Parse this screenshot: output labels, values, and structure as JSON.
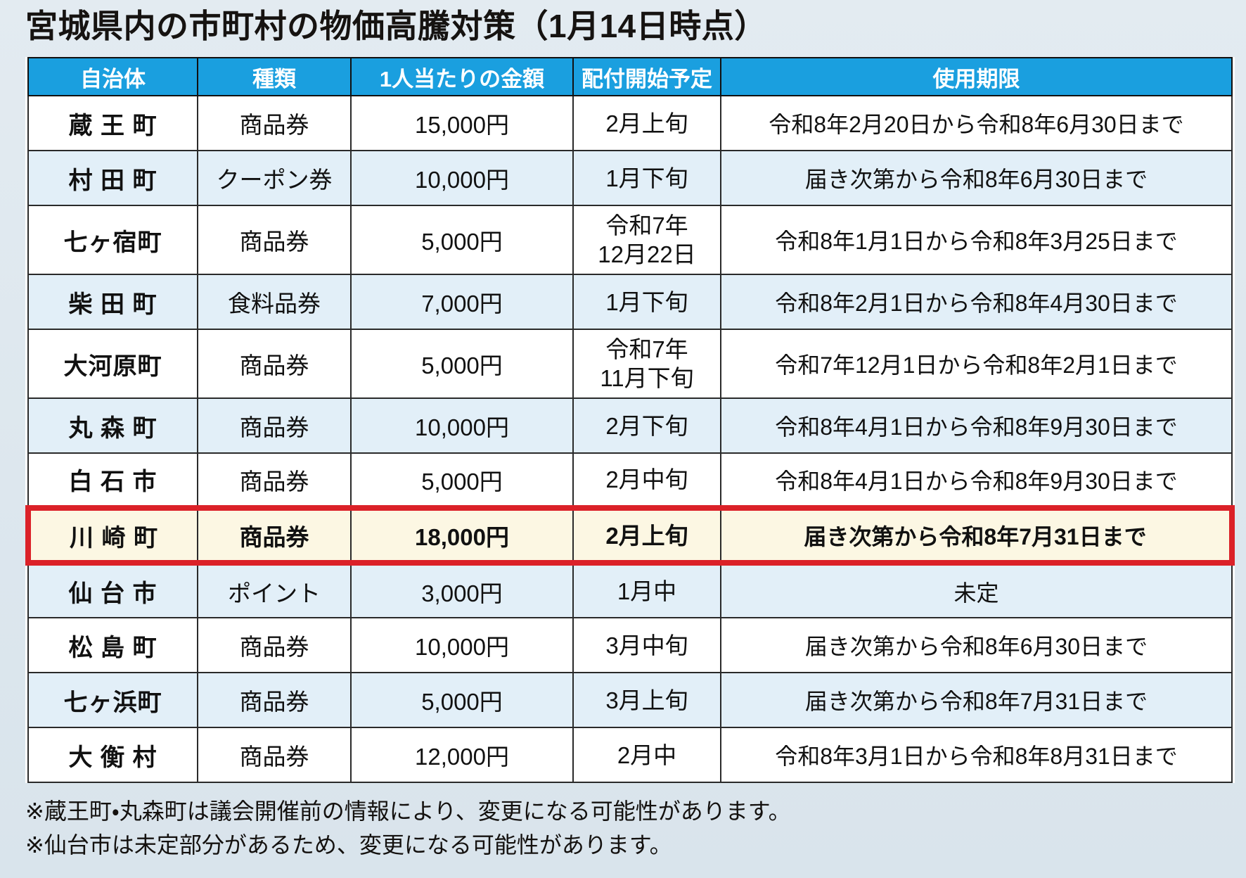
{
  "title": "宮城県内の市町村の物価高騰対策（1月14日時点）",
  "colors": {
    "header_blue": "#1a9fdf",
    "row_shade_blue": "#e2eff8",
    "highlight_cream": "#fcf7e3",
    "highlight_red": "#db2128",
    "page_background": "#dfe8ee",
    "border_dark": "#2a2a2a"
  },
  "table": {
    "headers": [
      "自治体",
      "種類",
      "1人当たりの金額",
      "配付開始予定",
      "使用期限"
    ],
    "rows": [
      {
        "municipality": "蔵 王 町",
        "type": "商品券",
        "amount": "15,000円",
        "start": "2月上旬",
        "period": "令和8年2月20日から令和8年6月30日まで",
        "shade": false,
        "tall": false,
        "highlight": false
      },
      {
        "municipality": "村 田 町",
        "type": "クーポン券",
        "amount": "10,000円",
        "start": "1月下旬",
        "period": "届き次第から令和8年6月30日まで",
        "shade": true,
        "tall": false,
        "highlight": false
      },
      {
        "municipality": "七ヶ宿町",
        "type": "商品券",
        "amount": "5,000円",
        "start": "令和7年\n12月22日",
        "period": "令和8年1月1日から令和8年3月25日まで",
        "shade": false,
        "tall": true,
        "highlight": false
      },
      {
        "municipality": "柴 田 町",
        "type": "食料品券",
        "amount": "7,000円",
        "start": "1月下旬",
        "period": "令和8年2月1日から令和8年4月30日まで",
        "shade": true,
        "tall": false,
        "highlight": false
      },
      {
        "municipality": "大河原町",
        "type": "商品券",
        "amount": "5,000円",
        "start": "令和7年\n11月下旬",
        "period": "令和7年12月1日から令和8年2月1日まで",
        "shade": false,
        "tall": true,
        "highlight": false
      },
      {
        "municipality": "丸 森 町",
        "type": "商品券",
        "amount": "10,000円",
        "start": "2月下旬",
        "period": "令和8年4月1日から令和8年9月30日まで",
        "shade": true,
        "tall": false,
        "highlight": false
      },
      {
        "municipality": "白 石 市",
        "type": "商品券",
        "amount": "5,000円",
        "start": "2月中旬",
        "period": "令和8年4月1日から令和8年9月30日まで",
        "shade": false,
        "tall": false,
        "highlight": false
      },
      {
        "municipality": "川 崎 町",
        "type": "商品券",
        "amount": "18,000円",
        "start": "2月上旬",
        "period": "届き次第から令和8年7月31日まで",
        "shade": false,
        "tall": false,
        "highlight": true
      },
      {
        "municipality": "仙 台 市",
        "type": "ポイント",
        "amount": "3,000円",
        "start": "1月中",
        "period": "未定",
        "shade": true,
        "tall": false,
        "highlight": false
      },
      {
        "municipality": "松 島 町",
        "type": "商品券",
        "amount": "10,000円",
        "start": "3月中旬",
        "period": "届き次第から令和8年6月30日まで",
        "shade": false,
        "tall": false,
        "highlight": false
      },
      {
        "municipality": "七ヶ浜町",
        "type": "商品券",
        "amount": "5,000円",
        "start": "3月上旬",
        "period": "届き次第から令和8年7月31日まで",
        "shade": true,
        "tall": false,
        "highlight": false
      },
      {
        "municipality": "大 衡 村",
        "type": "商品券",
        "amount": "12,000円",
        "start": "2月中",
        "period": "令和8年3月1日から令和8年8月31日まで",
        "shade": false,
        "tall": false,
        "highlight": false
      }
    ]
  },
  "notes": [
    "※蔵王町・丸森町は議会開催前の情報により、変更になる可能性があります。",
    "※仙台市は未定部分があるため、変更になる可能性があります。"
  ]
}
